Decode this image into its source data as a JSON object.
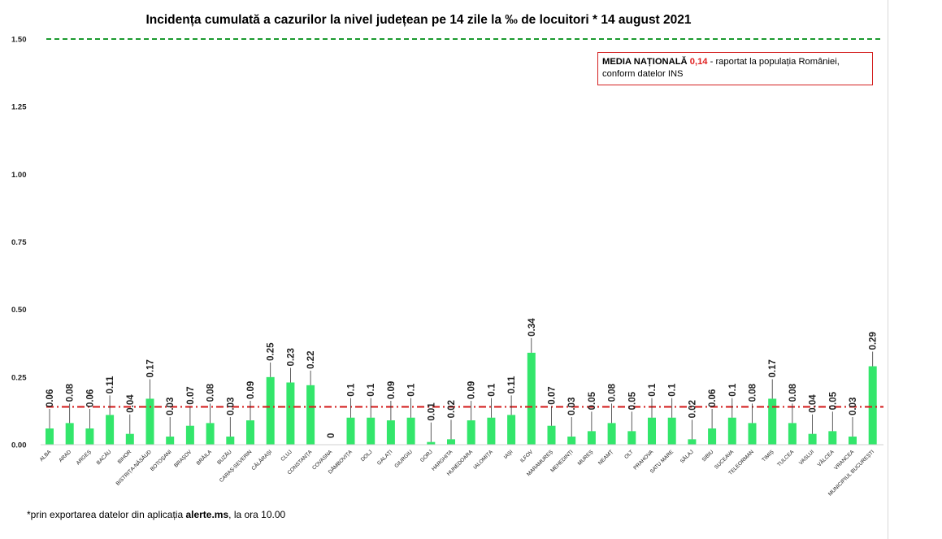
{
  "chart_data": {
    "type": "bar",
    "title": "Incidența cumulată a cazurilor la nivel județean pe 14 zile la ‰ de locuitori *  14 august 2021",
    "categories": [
      "ALBA",
      "ARAD",
      "ARGEȘ",
      "BACĂU",
      "BIHOR",
      "BISTRIȚA-NĂSĂUD",
      "BOTOȘANI",
      "BRAȘOV",
      "BRĂILA",
      "BUZĂU",
      "CARAȘ-SEVERIN",
      "CĂLĂRAȘI",
      "CLUJ",
      "CONSTANȚA",
      "COVASNA",
      "DÂMBOVIȚA",
      "DOLJ",
      "GALAȚI",
      "GIURGIU",
      "GORJ",
      "HARGHITA",
      "HUNEDOARA",
      "IALOMIȚA",
      "IAȘI",
      "ILFOV",
      "MARAMUREȘ",
      "MEHEDINȚI",
      "MUREȘ",
      "NEAMȚ",
      "OLT",
      "PRAHOVA",
      "SATU MARE",
      "SĂLAJ",
      "SIBIU",
      "SUCEAVA",
      "TELEORMAN",
      "TIMIȘ",
      "TULCEA",
      "VASLUI",
      "VÂLCEA",
      "VRANCEA",
      "MUNICIPIUL BUCUREȘTI"
    ],
    "values": [
      0.06,
      0.08,
      0.06,
      0.11,
      0.04,
      0.17,
      0.03,
      0.07,
      0.08,
      0.03,
      0.09,
      0.25,
      0.23,
      0.22,
      0,
      0.1,
      0.1,
      0.09,
      0.1,
      0.01,
      0.02,
      0.09,
      0.1,
      0.11,
      0.34,
      0.07,
      0.03,
      0.05,
      0.08,
      0.05,
      0.1,
      0.1,
      0.02,
      0.06,
      0.1,
      0.08,
      0.17,
      0.08,
      0.04,
      0.05,
      0.03,
      0.29
    ],
    "data_labels": [
      "0.06",
      "0.08",
      "0.06",
      "0.11",
      "0.04",
      "0.17",
      "0.03",
      "0.07",
      "0.08",
      "0.03",
      "0.09",
      "0.25",
      "0.23",
      "0.22",
      "0",
      "0.1",
      "0.1",
      "0.09",
      "0.1",
      "0.01",
      "0.02",
      "0.09",
      "0.1",
      "0.11",
      "0.34",
      "0.07",
      "0.03",
      "0.05",
      "0.08",
      "0.05",
      "0.1",
      "0.1",
      "0.02",
      "0.06",
      "0.1",
      "0.08",
      "0.17",
      "0.08",
      "0.04",
      "0.05",
      "0.03",
      "0.29"
    ],
    "ylim": [
      0,
      1.5
    ],
    "yticks": [
      "0.00",
      "0.25",
      "0.50",
      "0.75",
      "1.00",
      "1.25",
      "1.50"
    ],
    "grid": false,
    "bar_color": "#33e66b",
    "reference_lines": [
      {
        "value": 1.5,
        "color": "#1a9a2e",
        "style": "dashed"
      },
      {
        "value": 0.14,
        "color": "#d42020",
        "style": "dash-dot"
      }
    ],
    "legend_placement": "top-right"
  },
  "legend_box": {
    "label": "MEDIA NAȚIONALĂ",
    "value": "0,14",
    "text": " - raportat la populația României, conform datelor INS"
  },
  "footnote": {
    "prefix": "*prin exportarea datelor din aplicația ",
    "app": "alerte.ms",
    "suffix": ", la ora 10.00"
  }
}
